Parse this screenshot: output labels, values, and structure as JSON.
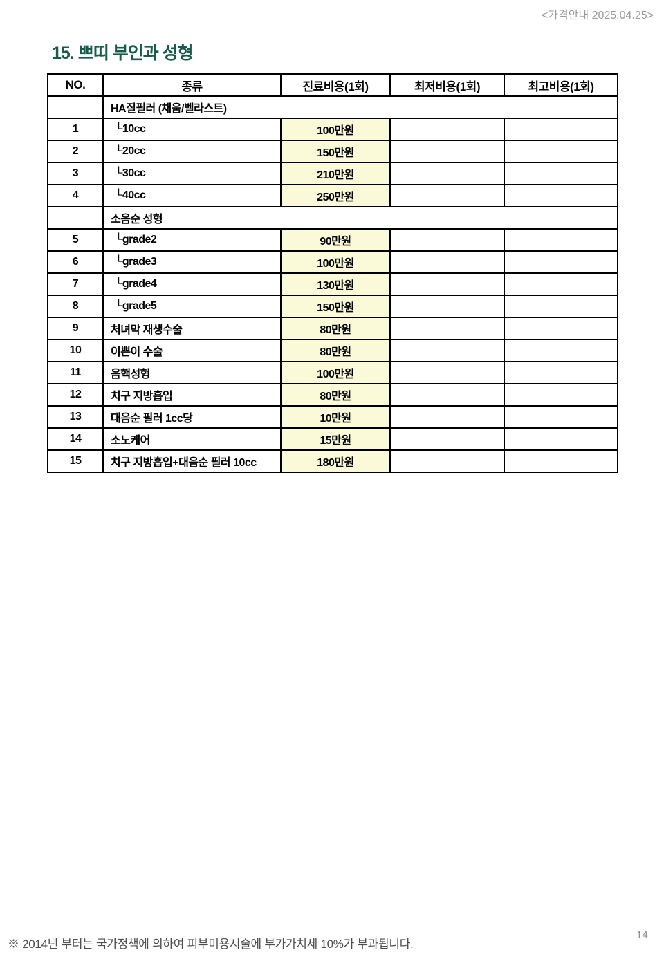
{
  "page": {
    "header_right": "<가격안내 2025.04.25>",
    "title_number": "15.",
    "title": "쁘띠 부인과 성형",
    "footnote": "※ 2014년 부터는 국가정책에 의하여 피부미용시술에 부가가치세 10%가 부과됩니다.",
    "page_number": "14"
  },
  "colors": {
    "title_green": "#175b4b",
    "price_cell_bg": "#fafad9",
    "table_border": "#000000",
    "header_date_gray": "#9b9b9b",
    "footnote_gray": "#4d4d4d",
    "page_number_gray": "#8c8c8c"
  },
  "table": {
    "columns": [
      "NO.",
      "종류",
      "진료비용(1회)",
      "최저비용(1회)",
      "최고비용(1회)"
    ],
    "rows": [
      {
        "type": "group",
        "no": "",
        "label": "HA질필러 (채움/벨라스트)"
      },
      {
        "type": "item",
        "no": "1",
        "label": "└10cc",
        "sub": true,
        "price": "100만원",
        "min": "",
        "max": ""
      },
      {
        "type": "item",
        "no": "2",
        "label": "└20cc",
        "sub": true,
        "price": "150만원",
        "min": "",
        "max": ""
      },
      {
        "type": "item",
        "no": "3",
        "label": "└30cc",
        "sub": true,
        "price": "210만원",
        "min": "",
        "max": ""
      },
      {
        "type": "item",
        "no": "4",
        "label": "└40cc",
        "sub": true,
        "price": "250만원",
        "min": "",
        "max": ""
      },
      {
        "type": "group",
        "no": "",
        "label": "소음순 성형"
      },
      {
        "type": "item",
        "no": "5",
        "label": "└grade2",
        "sub": true,
        "price": "90만원",
        "min": "",
        "max": ""
      },
      {
        "type": "item",
        "no": "6",
        "label": "└grade3",
        "sub": true,
        "price": "100만원",
        "min": "",
        "max": ""
      },
      {
        "type": "item",
        "no": "7",
        "label": "└grade4",
        "sub": true,
        "price": "130만원",
        "min": "",
        "max": ""
      },
      {
        "type": "item",
        "no": "8",
        "label": "└grade5",
        "sub": true,
        "price": "150만원",
        "min": "",
        "max": ""
      },
      {
        "type": "item",
        "no": "9",
        "label": "처녀막 재생수술",
        "sub": false,
        "price": "80만원",
        "min": "",
        "max": ""
      },
      {
        "type": "item",
        "no": "10",
        "label": "이쁜이 수술",
        "sub": false,
        "price": "80만원",
        "min": "",
        "max": ""
      },
      {
        "type": "item",
        "no": "11",
        "label": "음핵성형",
        "sub": false,
        "price": "100만원",
        "min": "",
        "max": ""
      },
      {
        "type": "item",
        "no": "12",
        "label": "치구 지방흡입",
        "sub": false,
        "price": "80만원",
        "min": "",
        "max": ""
      },
      {
        "type": "item",
        "no": "13",
        "label": "대음순 필러 1cc당",
        "sub": false,
        "price": "10만원",
        "min": "",
        "max": ""
      },
      {
        "type": "item",
        "no": "14",
        "label": "소노케어",
        "sub": false,
        "price": "15만원",
        "min": "",
        "max": ""
      },
      {
        "type": "item",
        "no": "15",
        "label": "치구 지방흡입+대음순 필러 10cc",
        "sub": false,
        "price": "180만원",
        "min": "",
        "max": ""
      }
    ]
  }
}
